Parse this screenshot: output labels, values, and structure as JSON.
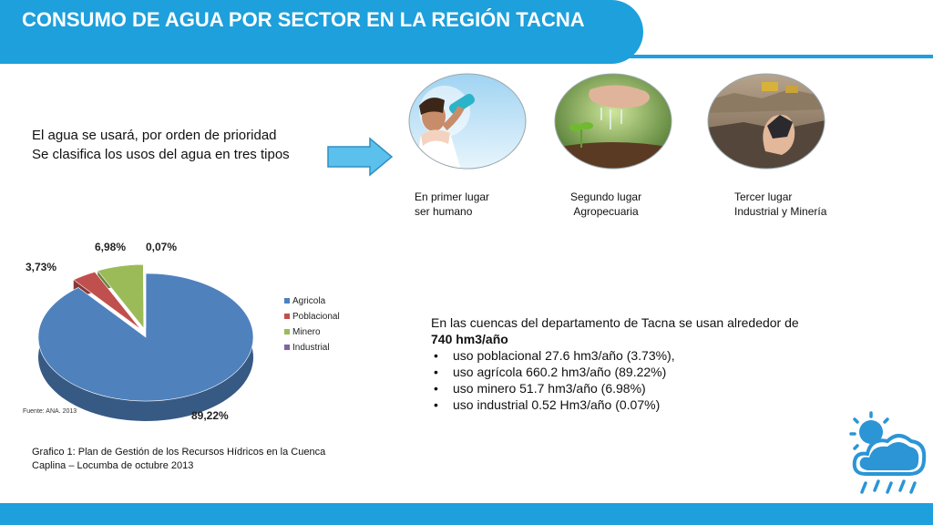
{
  "header": {
    "title": "CONSUMO DE AGUA POR SECTOR EN LA REGIÓN TACNA"
  },
  "intro": {
    "line1": "El agua se usará, por orden de prioridad",
    "line2": "Se clasifica los usos del agua en tres tipos"
  },
  "priorities": [
    {
      "caption": "En primer lugar\nser humano",
      "icon": "person-drinking-water-photo"
    },
    {
      "caption": "Segundo lugar\nAgropecuaria",
      "icon": "hand-watering-sprout-photo"
    },
    {
      "caption": "Tercer lugar\nIndustrial y Minería",
      "icon": "mining-ore-photo"
    }
  ],
  "chart_data": {
    "type": "pie",
    "title": "",
    "categories": [
      "Agricola",
      "Poblacional",
      "Minero",
      "Industrial"
    ],
    "values": [
      89.22,
      3.73,
      6.98,
      0.07
    ],
    "labels": [
      "89,22%",
      "3,73%",
      "6,98%",
      "0,07%"
    ],
    "colors": [
      "#4f81bd",
      "#c0504d",
      "#9bbb59",
      "#8064a2"
    ],
    "legend_position": "right",
    "source": "Fuente: ANA. 2013"
  },
  "chart_caption": "Grafico 1: Plan de Gestión de los Recursos Hídricos en la Cuenca Caplina – Locumba de octubre 2013",
  "stats": {
    "intro": "En las cuencas del departamento de Tacna se usan alrededor de",
    "total": "740 hm3/año",
    "items": [
      "uso poblacional 27.6 hm3/año (3.73%),",
      "uso agrícola 660.2 hm3/año (89.22%)",
      "uso minero 51.7 hm3/año (6.98%)",
      "uso industrial 0.52 Hm3/año (0.07%)"
    ]
  },
  "colors": {
    "accent": "#1da0dc",
    "arrow": "#5bc0ec"
  },
  "decor": {
    "weather_icon": "sun-cloud-rain-icon"
  }
}
